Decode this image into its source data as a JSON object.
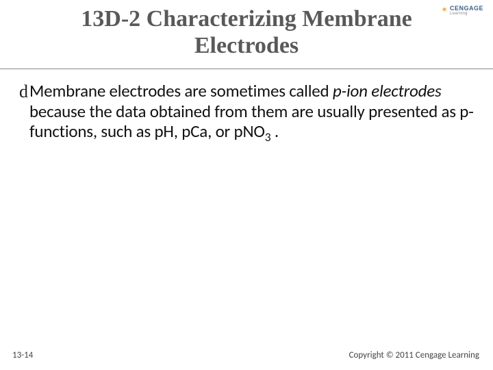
{
  "logo": {
    "brand": "CENGAGE",
    "sub": "Learning",
    "brandColor": "#3b5f8a",
    "starColor": "#e8a33d"
  },
  "title": {
    "text": "13D-2 Characterizing Membrane Electrodes",
    "color": "#595959",
    "fontFamily": "Georgia, \"Times New Roman\", serif",
    "fontSizePt": 26,
    "fontWeight": 700
  },
  "rule": {
    "color": "#888888",
    "topPx": 100
  },
  "body": {
    "bullet": {
      "runs": [
        {
          "t": "Membrane electrodes are sometimes called ",
          "i": false
        },
        {
          "t": "p-ion electrodes",
          "i": true
        },
        {
          "t": " because the data obtained from them are usually presented as p-functions, such as pH, pCa, or pNO",
          "i": false
        },
        {
          "t": "3",
          "i": false,
          "sub": true
        },
        {
          "t": " .",
          "i": false
        }
      ],
      "fontSizePt": 19,
      "color": "#111111"
    },
    "bulletGlyph": "d"
  },
  "footer": {
    "slideNumber": "13-14",
    "copyright": "Copyright © 2011 Cengage Learning",
    "color": "#444444",
    "fontSizePt": 10
  },
  "slide": {
    "widthPx": 720,
    "heightPx": 540,
    "background": "#ffffff"
  }
}
